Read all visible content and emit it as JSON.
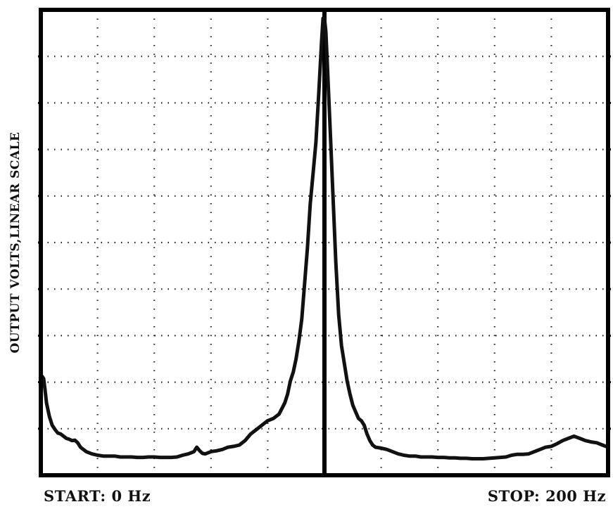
{
  "chart_data": {
    "type": "line",
    "title": "",
    "ylabel": "OUTPUT VOLTS,LINEAR SCALE",
    "xlabel": "",
    "start_label": "START: 0 Hz",
    "stop_label": "STOP: 200 Hz",
    "xlim": [
      0,
      200
    ],
    "ylim": [
      0,
      10
    ],
    "grid": true,
    "grid_style": "dotted",
    "marker_x": 100,
    "colors": {
      "trace": "#111111",
      "grid": "#222222",
      "background": "#ffffff"
    },
    "series": [
      {
        "x": [
          0,
          0.5,
          1,
          1.5,
          2,
          3,
          4,
          5,
          6,
          7,
          8,
          9,
          10,
          11,
          12,
          13,
          14,
          15,
          16,
          18,
          20,
          22,
          24,
          26,
          28,
          30,
          32,
          34,
          36,
          38,
          40,
          42,
          44,
          46,
          48,
          50,
          52,
          54,
          55,
          56,
          57,
          58,
          60,
          62,
          64,
          66,
          68,
          70,
          72,
          74,
          76,
          78,
          80,
          82,
          84,
          86,
          87,
          88,
          89,
          90,
          91,
          92,
          93,
          94,
          95,
          96,
          97,
          98,
          99,
          99.5,
          100,
          100.5,
          101,
          102,
          103,
          104,
          105,
          106,
          107,
          108,
          109,
          110,
          111,
          112,
          113,
          114,
          115,
          116,
          117,
          118,
          120,
          122,
          124,
          126,
          128,
          130,
          132,
          134,
          136,
          138,
          140,
          142,
          144,
          146,
          148,
          150,
          152,
          154,
          156,
          158,
          160,
          162,
          164,
          166,
          168,
          170,
          172,
          174,
          176,
          178,
          180,
          182,
          184,
          186,
          188,
          190,
          192,
          194,
          196,
          198,
          200
        ],
        "values": [
          1.7,
          1.9,
          1.85,
          1.6,
          1.3,
          1.0,
          0.8,
          0.7,
          0.62,
          0.6,
          0.55,
          0.5,
          0.48,
          0.45,
          0.46,
          0.4,
          0.3,
          0.25,
          0.2,
          0.15,
          0.12,
          0.1,
          0.1,
          0.1,
          0.08,
          0.08,
          0.08,
          0.07,
          0.07,
          0.08,
          0.08,
          0.07,
          0.07,
          0.07,
          0.08,
          0.12,
          0.15,
          0.2,
          0.3,
          0.22,
          0.16,
          0.15,
          0.2,
          0.22,
          0.25,
          0.3,
          0.32,
          0.35,
          0.45,
          0.6,
          0.7,
          0.8,
          0.9,
          0.95,
          1.05,
          1.3,
          1.5,
          1.8,
          2.0,
          2.3,
          2.7,
          3.2,
          4.0,
          4.8,
          5.8,
          6.5,
          7.2,
          8.3,
          9.5,
          10.0,
          10.0,
          9.7,
          9.0,
          7.5,
          6.0,
          4.5,
          3.3,
          2.6,
          2.2,
          1.8,
          1.5,
          1.25,
          1.1,
          0.95,
          0.9,
          0.8,
          0.6,
          0.45,
          0.35,
          0.3,
          0.28,
          0.25,
          0.2,
          0.15,
          0.12,
          0.1,
          0.1,
          0.08,
          0.08,
          0.08,
          0.07,
          0.07,
          0.06,
          0.06,
          0.05,
          0.05,
          0.04,
          0.04,
          0.04,
          0.05,
          0.06,
          0.07,
          0.08,
          0.12,
          0.14,
          0.14,
          0.15,
          0.2,
          0.25,
          0.3,
          0.32,
          0.38,
          0.45,
          0.5,
          0.55,
          0.5,
          0.45,
          0.42,
          0.4,
          0.35,
          0.3
        ]
      }
    ]
  }
}
